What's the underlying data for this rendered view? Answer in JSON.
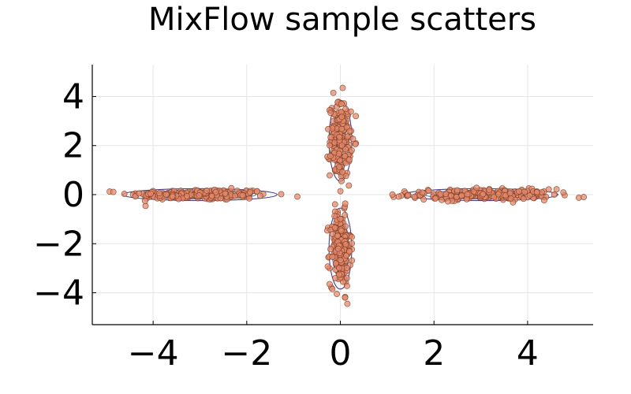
{
  "chart_data": {
    "type": "scatter",
    "title": "MixFlow sample scatters",
    "xlabel": "",
    "ylabel": "",
    "xlim": [
      -5.3,
      5.4
    ],
    "ylim": [
      -5.3,
      5.3
    ],
    "xticks": [
      -4,
      -2,
      0,
      2,
      4
    ],
    "yticks": [
      -4,
      -2,
      0,
      2,
      4
    ],
    "xtick_labels": [
      "−4",
      "−2",
      "0",
      "2",
      "4"
    ],
    "ytick_labels": [
      "−4",
      "−2",
      "0",
      "2",
      "4"
    ],
    "grid": true,
    "legend": "none",
    "point_color": "#e3896c",
    "point_edge_color": "#7a3a22",
    "contour_colors": [
      "#3b2a7a",
      "#3a6fb0",
      "#2fa88f",
      "#7fd36b"
    ],
    "components": [
      {
        "axis": "horizontal",
        "center": [
          -3.0,
          0.0
        ],
        "spread": [
          0.75,
          0.11
        ]
      },
      {
        "axis": "horizontal",
        "center": [
          3.0,
          0.0
        ],
        "spread": [
          0.75,
          0.11
        ]
      },
      {
        "axis": "vertical",
        "center": [
          0.0,
          2.2
        ],
        "spread": [
          0.11,
          0.75
        ]
      },
      {
        "axis": "vertical",
        "center": [
          0.0,
          -2.2
        ],
        "spread": [
          0.11,
          0.75
        ]
      }
    ],
    "extreme_points": [
      [
        5.2,
        -0.1
      ],
      [
        -4.3,
        0.05
      ],
      [
        0.05,
        4.35
      ],
      [
        0.1,
        -4.2
      ],
      [
        4.2,
        0.1
      ],
      [
        -0.15,
        4.15
      ]
    ],
    "sample_count": 900
  }
}
